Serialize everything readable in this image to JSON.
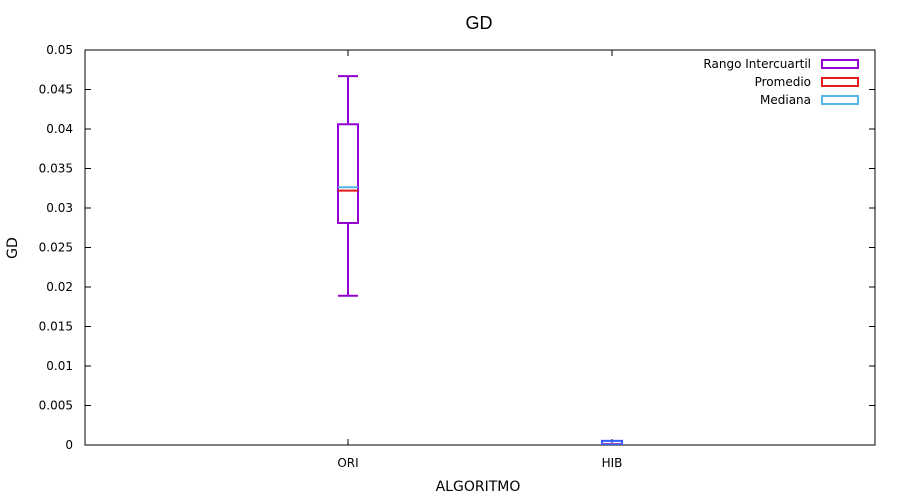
{
  "chart_data": {
    "type": "boxplot",
    "title": "GD",
    "xlabel": "ALGORITMO",
    "ylabel": "GD",
    "ylim": [
      0,
      0.05
    ],
    "ytick_values": [
      0,
      0.005,
      0.01,
      0.015,
      0.02,
      0.025,
      0.03,
      0.035,
      0.04,
      0.045,
      0.05
    ],
    "ytick_labels": [
      "0",
      "0.005",
      "0.01",
      "0.015",
      "0.02",
      "0.025",
      "0.03",
      "0.035",
      "0.04",
      "0.045",
      "0.05"
    ],
    "categories": [
      "ORI",
      "HIB"
    ],
    "boxes": [
      {
        "category": "ORI",
        "min": 0.0189,
        "q1": 0.0281,
        "median": 0.0325,
        "mean": 0.0322,
        "q3": 0.0406,
        "max": 0.0467
      },
      {
        "category": "HIB",
        "min": 0.0,
        "q1": 0.0001,
        "median": 0.0002,
        "mean": 0.0002,
        "q3": 0.0003,
        "max": 0.0004
      }
    ],
    "legend": [
      {
        "label": "Rango Intercuartil",
        "color": "#9400d3"
      },
      {
        "label": "Promedio",
        "color": "#e41a1c"
      },
      {
        "label": "Mediana",
        "color": "#56b4e9"
      }
    ],
    "legend_position": "top-right",
    "colors": {
      "box": "#9400d3",
      "mean": "#e41a1c",
      "median": "#56b4e9",
      "hib_box": "#2e5cff"
    },
    "grid": false
  }
}
